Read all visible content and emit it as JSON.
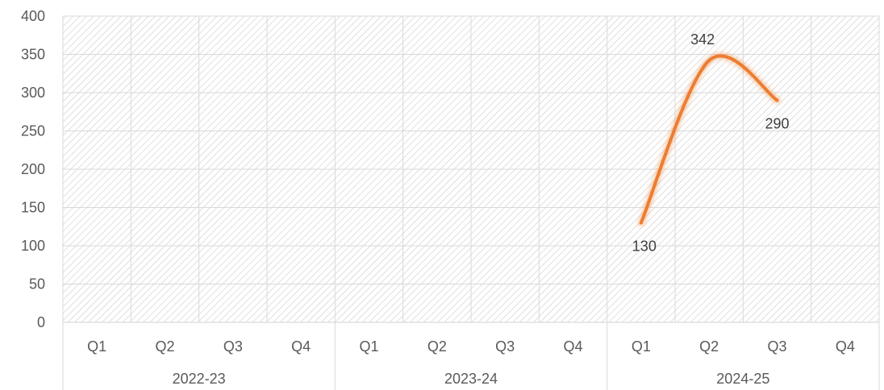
{
  "chart_data": {
    "type": "line",
    "title": "",
    "xlabel": "",
    "ylabel": "",
    "ylim": [
      0,
      400
    ],
    "yticks": [
      "0",
      "50",
      "100",
      "150",
      "200",
      "250",
      "300",
      "350",
      "400"
    ],
    "x_groups": [
      {
        "label": "2022-23",
        "quarters": [
          "Q1",
          "Q2",
          "Q3",
          "Q4"
        ]
      },
      {
        "label": "2023-24",
        "quarters": [
          "Q1",
          "Q2",
          "Q3",
          "Q4"
        ]
      },
      {
        "label": "2024-25",
        "quarters": [
          "Q1",
          "Q2",
          "Q3",
          "Q4"
        ]
      }
    ],
    "series": [
      {
        "color": "#ED7D31",
        "points": [
          {
            "group": "2024-25",
            "quarter": "Q1",
            "value": 130,
            "label": "130"
          },
          {
            "group": "2024-25",
            "quarter": "Q2",
            "value": 342,
            "label": "342"
          },
          {
            "group": "2024-25",
            "quarter": "Q3",
            "value": 290,
            "label": "290"
          }
        ]
      }
    ],
    "grid": true,
    "legend": "none"
  }
}
